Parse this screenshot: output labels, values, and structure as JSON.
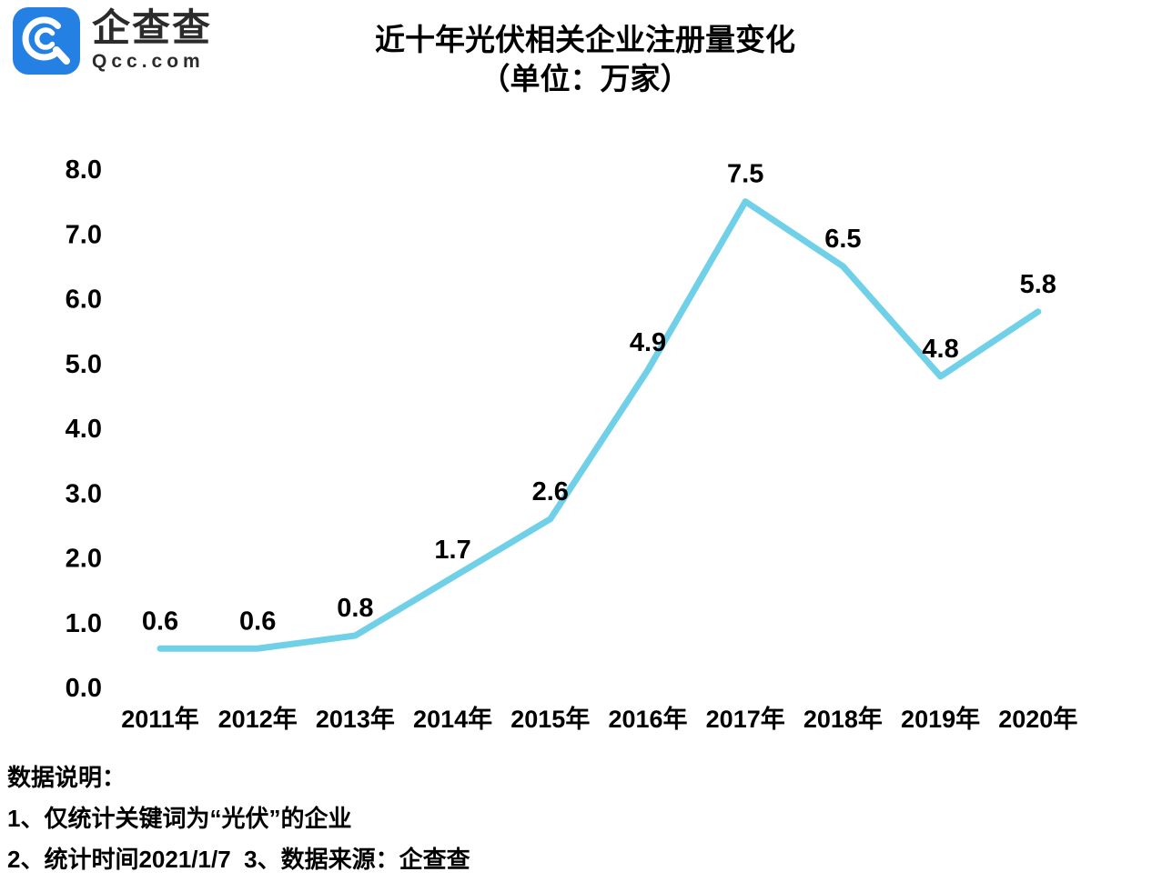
{
  "header": {
    "logo": {
      "brand_cn": "企查查",
      "brand_domain": "Qcc.com",
      "icon_color": "#2580E4"
    },
    "title": "近十年光伏相关企业注册量变化",
    "subtitle": "（单位：万家）"
  },
  "chart_data": {
    "type": "line",
    "title": "近十年光伏相关企业注册量变化",
    "subtitle": "（单位：万家）",
    "categories": [
      "2011年",
      "2012年",
      "2013年",
      "2014年",
      "2015年",
      "2016年",
      "2017年",
      "2018年",
      "2019年",
      "2020年"
    ],
    "values": [
      0.6,
      0.6,
      0.8,
      1.7,
      2.6,
      4.9,
      7.5,
      6.5,
      4.8,
      5.8
    ],
    "data_labels": [
      "0.6",
      "0.6",
      "0.8",
      "1.7",
      "2.6",
      "4.9",
      "7.5",
      "6.5",
      "4.8",
      "5.8"
    ],
    "y_ticks": [
      "8.0",
      "7.0",
      "6.0",
      "5.0",
      "4.0",
      "3.0",
      "2.0",
      "1.0",
      "0.0"
    ],
    "ylim": [
      0,
      8
    ],
    "xlabel": "",
    "ylabel": "",
    "grid": false,
    "legend": "none",
    "line_color": "#6FD0E8",
    "label_color": "#000000"
  },
  "notes": {
    "heading": "数据说明：",
    "line1": "1、仅统计关键词为“光伏”的企业",
    "line2": "2、统计时间2021/1/7  3、数据来源：企查查"
  }
}
